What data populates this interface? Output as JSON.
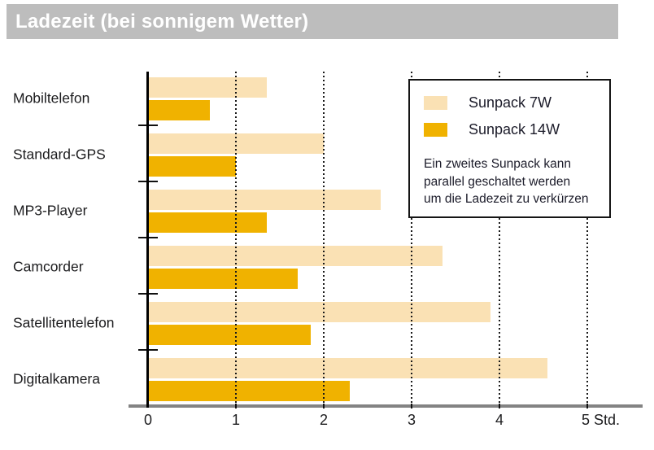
{
  "header": {
    "title": "Ladezeit (bei sonnigem Wetter)"
  },
  "colors": {
    "series7w": "#FAE1B4",
    "series14w": "#F0B200",
    "header_bg": "#BDBDBD",
    "axis_gray": "#838383",
    "grid": "#1A1A1A",
    "text": "#1C1C1E"
  },
  "legend": {
    "items": [
      {
        "label": "Sunpack 7W",
        "color_key": "series7w"
      },
      {
        "label": "Sunpack 14W",
        "color_key": "series14w"
      }
    ],
    "note_lines": [
      "Ein zweites Sunpack kann",
      "parallel geschaltet werden",
      "um die Ladezeit zu verkürzen"
    ]
  },
  "chart_data": {
    "type": "bar",
    "orientation": "horizontal",
    "title": "Ladezeit (bei sonnigem Wetter)",
    "categories": [
      "Mobiltelefon",
      "Standard-GPS",
      "MP3-Player",
      "Camcorder",
      "Satellitentelefon",
      "Digitalkamera"
    ],
    "series": [
      {
        "name": "Sunpack 7W",
        "color": "#FAE1B4",
        "values": [
          1.35,
          2.0,
          2.65,
          3.35,
          3.9,
          4.55
        ]
      },
      {
        "name": "Sunpack 14W",
        "color": "#F0B200",
        "values": [
          0.7,
          1.0,
          1.35,
          1.7,
          1.85,
          2.3
        ]
      }
    ],
    "x_ticks": [
      0,
      1,
      2,
      3,
      4,
      5
    ],
    "x_tick_labels": [
      "0",
      "1",
      "2",
      "3",
      "4",
      "5 Std."
    ],
    "unit": "Std.",
    "xlim": [
      0,
      5.6
    ],
    "grid": "dotted-vertical",
    "legend_position": "top-right"
  }
}
